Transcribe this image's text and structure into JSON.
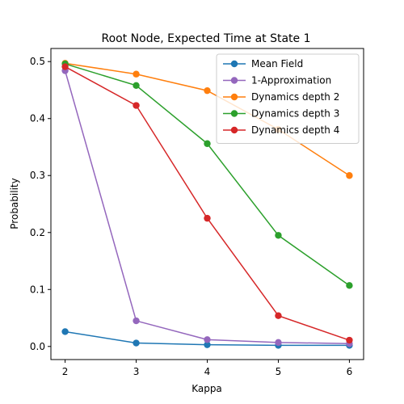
{
  "chart_data": {
    "type": "line",
    "title": "Root Node, Expected Time at State 1",
    "xlabel": "Kappa",
    "ylabel": "Probability",
    "x": [
      2,
      3,
      4,
      5,
      6
    ],
    "xticks": [
      "2",
      "3",
      "4",
      "5",
      "6"
    ],
    "xlim": [
      1.8,
      6.2
    ],
    "ylim": [
      -0.023,
      0.523
    ],
    "yticks": [
      "0.0",
      "0.1",
      "0.2",
      "0.3",
      "0.4",
      "0.5"
    ],
    "grid": false,
    "legend_position": "top-right",
    "series": [
      {
        "name": "Mean Field",
        "color": "#1f77b4",
        "values": [
          0.026,
          0.006,
          0.003,
          0.002,
          0.002
        ]
      },
      {
        "name": "1-Approximation",
        "color": "#9467bd",
        "values": [
          0.484,
          0.045,
          0.012,
          0.007,
          0.005
        ]
      },
      {
        "name": "Dynamics depth 2",
        "color": "#ff7f0e",
        "values": [
          0.497,
          0.478,
          0.449,
          0.381,
          0.3
        ]
      },
      {
        "name": "Dynamics depth 3",
        "color": "#2ca02c",
        "values": [
          0.496,
          0.458,
          0.356,
          0.195,
          0.107
        ]
      },
      {
        "name": "Dynamics depth 4",
        "color": "#d62728",
        "values": [
          0.491,
          0.423,
          0.225,
          0.054,
          0.011
        ]
      }
    ]
  }
}
